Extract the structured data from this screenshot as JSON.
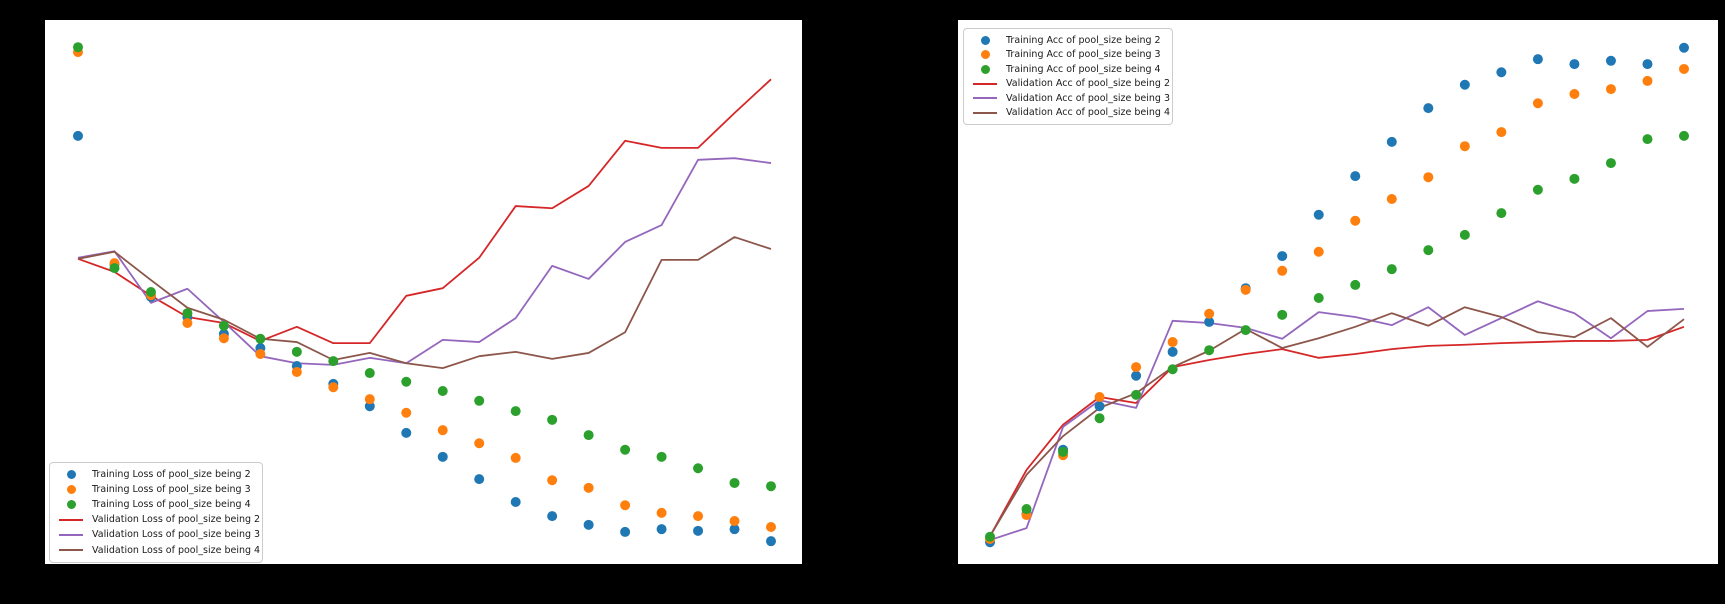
{
  "figure": {
    "background_color": "#000000",
    "plot_background_color": "#ffffff",
    "axes_note": "No titles, tick marks or tick labels are visible (default black matplotlib text on a black figure background)."
  },
  "chart_data": [
    {
      "id": "loss",
      "side": "left",
      "type": "scatter+line",
      "title": "",
      "xlabel": "",
      "ylabel": "",
      "x_name": "epoch",
      "x": [
        1,
        2,
        3,
        4,
        5,
        6,
        7,
        8,
        9,
        10,
        11,
        12,
        13,
        14,
        15,
        16,
        17,
        18,
        19,
        20
      ],
      "ylim": [
        0,
        1
      ],
      "y_units": "fraction of plot height (0 = bottom, 1 = top); numeric axis scale not visible in image",
      "grid": false,
      "legend": {
        "position": "lower-left"
      },
      "series": [
        {
          "name": "Training Loss of pool_size being 2",
          "style": "scatter",
          "color": "#1f77b4",
          "values": [
            0.787,
            0.551,
            0.491,
            0.454,
            0.423,
            0.397,
            0.364,
            0.331,
            0.29,
            0.241,
            0.197,
            0.156,
            0.114,
            0.088,
            0.072,
            0.059,
            0.064,
            0.061,
            0.064,
            0.042
          ]
        },
        {
          "name": "Training Loss of pool_size being 3",
          "style": "scatter",
          "color": "#ff7f0e",
          "values": [
            0.941,
            0.553,
            0.494,
            0.443,
            0.415,
            0.386,
            0.353,
            0.325,
            0.303,
            0.278,
            0.246,
            0.222,
            0.195,
            0.154,
            0.14,
            0.108,
            0.094,
            0.088,
            0.079,
            0.068
          ]
        },
        {
          "name": "Training Loss of pool_size being 4",
          "style": "scatter",
          "color": "#2ca02c",
          "values": [
            0.95,
            0.544,
            0.5,
            0.461,
            0.438,
            0.414,
            0.39,
            0.373,
            0.351,
            0.335,
            0.318,
            0.3,
            0.281,
            0.265,
            0.237,
            0.21,
            0.197,
            0.176,
            0.149,
            0.143
          ]
        },
        {
          "name": "Validation Loss of pool_size being 2",
          "style": "line",
          "color": "#d62728",
          "values": [
            0.561,
            0.537,
            0.493,
            0.454,
            0.443,
            0.41,
            0.436,
            0.406,
            0.406,
            0.493,
            0.507,
            0.563,
            0.658,
            0.654,
            0.695,
            0.778,
            0.765,
            0.765,
            0.829,
            0.891
          ]
        },
        {
          "name": "Validation Loss of pool_size being 3",
          "style": "line",
          "color": "#9467bd",
          "values": [
            0.563,
            0.575,
            0.48,
            0.506,
            0.445,
            0.382,
            0.369,
            0.366,
            0.379,
            0.369,
            0.412,
            0.408,
            0.452,
            0.548,
            0.524,
            0.592,
            0.623,
            0.743,
            0.746,
            0.737
          ]
        },
        {
          "name": "Validation Loss of pool_size being 4",
          "style": "line",
          "color": "#8c564b",
          "values": [
            0.561,
            0.574,
            0.522,
            0.471,
            0.449,
            0.414,
            0.408,
            0.375,
            0.388,
            0.369,
            0.36,
            0.382,
            0.39,
            0.377,
            0.388,
            0.426,
            0.559,
            0.559,
            0.601,
            0.579
          ]
        }
      ]
    },
    {
      "id": "accuracy",
      "side": "right",
      "type": "scatter+line",
      "title": "",
      "xlabel": "",
      "ylabel": "",
      "x_name": "epoch",
      "x": [
        1,
        2,
        3,
        4,
        5,
        6,
        7,
        8,
        9,
        10,
        11,
        12,
        13,
        14,
        15,
        16,
        17,
        18,
        19,
        20
      ],
      "ylim": [
        0,
        1
      ],
      "y_units": "fraction of plot height (0 = bottom, 1 = top); numeric axis scale not visible in image",
      "grid": false,
      "legend": {
        "position": "upper-left"
      },
      "series": [
        {
          "name": "Training Acc of pool_size being 2",
          "style": "scatter",
          "color": "#1f77b4",
          "values": [
            0.04,
            0.092,
            0.21,
            0.29,
            0.346,
            0.39,
            0.445,
            0.507,
            0.566,
            0.642,
            0.713,
            0.776,
            0.838,
            0.881,
            0.904,
            0.928,
            0.919,
            0.925,
            0.919,
            0.949
          ]
        },
        {
          "name": "Training Acc of pool_size being 3",
          "style": "scatter",
          "color": "#ff7f0e",
          "values": [
            0.046,
            0.09,
            0.2,
            0.307,
            0.362,
            0.408,
            0.46,
            0.504,
            0.539,
            0.574,
            0.631,
            0.671,
            0.711,
            0.768,
            0.794,
            0.847,
            0.864,
            0.873,
            0.888,
            0.91
          ]
        },
        {
          "name": "Training Acc of pool_size being 4",
          "style": "scatter",
          "color": "#2ca02c",
          "values": [
            0.05,
            0.101,
            0.206,
            0.268,
            0.311,
            0.358,
            0.393,
            0.43,
            0.458,
            0.489,
            0.513,
            0.542,
            0.577,
            0.605,
            0.645,
            0.688,
            0.708,
            0.737,
            0.781,
            0.787
          ]
        },
        {
          "name": "Validation Acc of pool_size being 2",
          "style": "line",
          "color": "#d62728",
          "values": [
            0.051,
            0.173,
            0.256,
            0.307,
            0.296,
            0.362,
            0.375,
            0.386,
            0.395,
            0.379,
            0.386,
            0.395,
            0.401,
            0.403,
            0.406,
            0.408,
            0.41,
            0.41,
            0.412,
            0.436
          ]
        },
        {
          "name": "Validation Acc of pool_size being 3",
          "style": "line",
          "color": "#9467bd",
          "values": [
            0.044,
            0.066,
            0.252,
            0.301,
            0.287,
            0.447,
            0.443,
            0.434,
            0.414,
            0.463,
            0.454,
            0.439,
            0.472,
            0.421,
            0.452,
            0.483,
            0.461,
            0.415,
            0.465,
            0.469
          ]
        },
        {
          "name": "Validation Acc of pool_size being 4",
          "style": "line",
          "color": "#8c564b",
          "values": [
            0.051,
            0.164,
            0.235,
            0.287,
            0.314,
            0.362,
            0.392,
            0.432,
            0.397,
            0.415,
            0.436,
            0.461,
            0.438,
            0.472,
            0.454,
            0.426,
            0.417,
            0.452,
            0.399,
            0.45
          ]
        }
      ]
    }
  ]
}
